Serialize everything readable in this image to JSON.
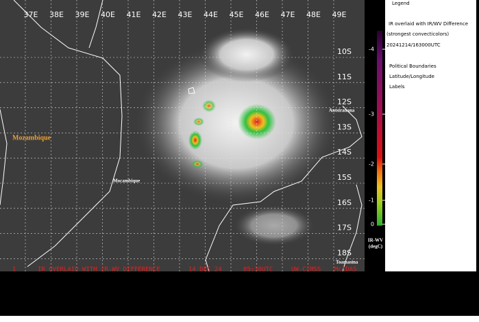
{
  "map": {
    "lon_labels": [
      "37E",
      "38E",
      "39E",
      "40E",
      "41E",
      "42E",
      "43E",
      "44E",
      "45E",
      "46E",
      "47E",
      "48E",
      "49E"
    ],
    "lat_labels": [
      "10S",
      "11S",
      "12S",
      "13S",
      "14S",
      "15S",
      "16S",
      "17S",
      "18S"
    ],
    "places": {
      "country": "Mozambique",
      "city": "Mocambique",
      "antsiranana": "Antsiranana",
      "toamasina": "Toamasina"
    },
    "banner": {
      "frame": "1",
      "product": "IR OVERLAID WITH IR-WV DIFFERENCE",
      "date": "14 DEC 24",
      "time": "05:30UTC",
      "source": "UW-CIMSS",
      "system": "McIDAS"
    }
  },
  "legend": {
    "title": "Legend",
    "product": "IR overlaid with IR/WV Difference",
    "note": "(strongest convecticolors)",
    "timestamp": "20241214/163000UTC",
    "layers": [
      "Political Boundaries",
      "Latitude/Longitude",
      "Labels"
    ],
    "scale": [
      -4,
      -3,
      -2,
      -1,
      0
    ],
    "unit": "IR-WV",
    "unit2": "(degC)"
  }
}
